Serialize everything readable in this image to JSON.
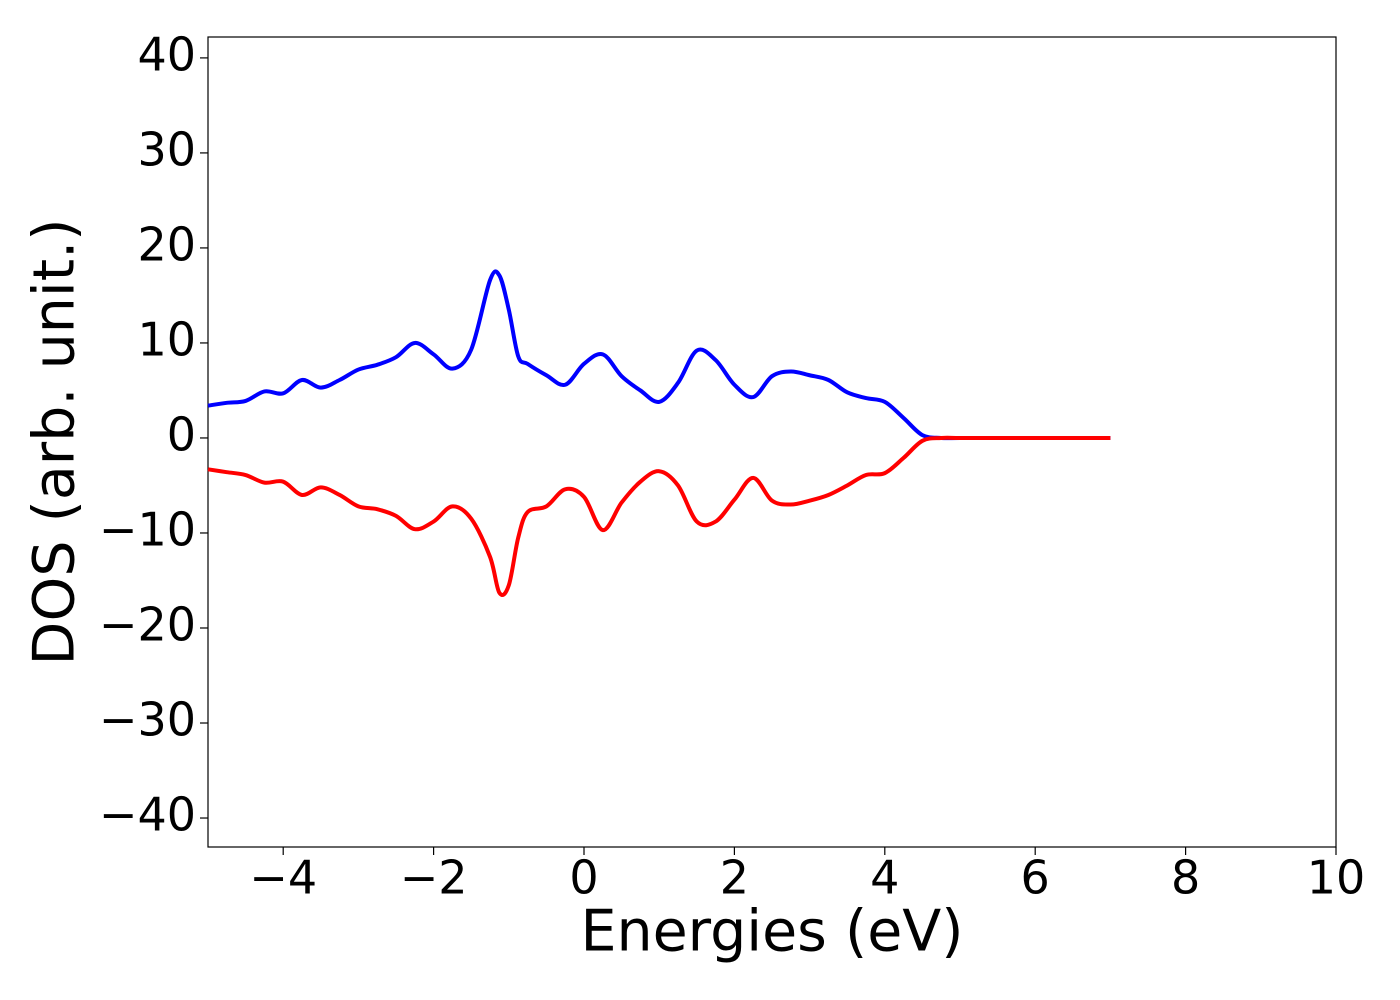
{
  "chart_data": {
    "type": "line",
    "xlabel": "Energies (eV)",
    "ylabel": "DOS (arb. unit.)",
    "x": [
      -5,
      -4.75,
      -4.5,
      -4.25,
      -4,
      -3.75,
      -3.5,
      -3.25,
      -3,
      -2.75,
      -2.5,
      -2.25,
      -2,
      -1.75,
      -1.5,
      -1.25,
      -1.125,
      -1,
      -0.875,
      -0.75,
      -0.5,
      -0.25,
      0,
      0.25,
      0.5,
      0.75,
      1,
      1.25,
      1.5,
      1.75,
      2,
      2.25,
      2.5,
      2.75,
      3,
      3.25,
      3.5,
      3.75,
      4,
      4.25,
      4.5,
      4.75,
      5,
      5.5,
      6,
      6.5,
      7
    ],
    "series": [
      {
        "color": "#0000ff",
        "values": [
          3.4,
          3.7,
          3.9,
          4.9,
          4.7,
          6.1,
          5.3,
          6.1,
          7.2,
          7.7,
          8.5,
          10.0,
          8.8,
          7.3,
          9.3,
          16.6,
          17.1,
          13.5,
          8.6,
          7.8,
          6.6,
          5.6,
          7.8,
          8.8,
          6.5,
          5.0,
          3.8,
          5.8,
          9.2,
          8.2,
          5.6,
          4.3,
          6.5,
          7.0,
          6.6,
          6.1,
          4.8,
          4.2,
          3.8,
          2.1,
          0.3,
          0,
          0,
          0,
          0,
          0,
          0
        ]
      },
      {
        "color": "#ff0000",
        "values": [
          -3.3,
          -3.6,
          -3.9,
          -4.7,
          -4.6,
          -6.0,
          -5.2,
          -6.0,
          -7.2,
          -7.5,
          -8.2,
          -9.6,
          -8.8,
          -7.2,
          -8.5,
          -12.5,
          -16.3,
          -15.5,
          -10.5,
          -7.8,
          -7.2,
          -5.4,
          -6.2,
          -9.7,
          -6.8,
          -4.6,
          -3.5,
          -5.0,
          -8.8,
          -8.8,
          -6.5,
          -4.2,
          -6.6,
          -7.0,
          -6.6,
          -6.0,
          -5.0,
          -3.9,
          -3.7,
          -2.1,
          -0.3,
          0,
          0,
          0,
          0,
          0,
          0
        ]
      }
    ],
    "xlim": [
      -5,
      10
    ],
    "xticks": [
      {
        "value": -4,
        "label": "−4"
      },
      {
        "value": -2,
        "label": "−2"
      },
      0,
      2,
      4,
      6,
      8,
      10
    ],
    "ylim": [
      -43.05,
      42.2
    ],
    "yticks": [
      {
        "value": -40,
        "label": "−40"
      },
      {
        "value": -30,
        "label": "−30"
      },
      {
        "value": -20,
        "label": "−20"
      },
      {
        "value": -10,
        "label": "−10"
      },
      0,
      10,
      20,
      30,
      40
    ]
  }
}
